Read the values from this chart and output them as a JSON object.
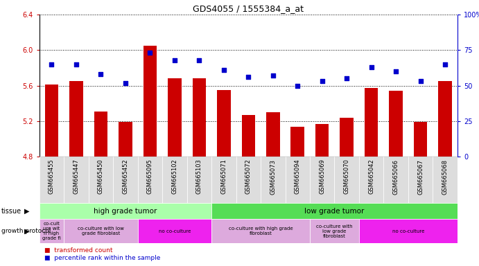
{
  "title": "GDS4055 / 1555384_a_at",
  "samples": [
    "GSM665455",
    "GSM665447",
    "GSM665450",
    "GSM665452",
    "GSM665095",
    "GSM665102",
    "GSM665103",
    "GSM665071",
    "GSM665072",
    "GSM665073",
    "GSM665094",
    "GSM665069",
    "GSM665070",
    "GSM665042",
    "GSM665066",
    "GSM665067",
    "GSM665068"
  ],
  "bar_values": [
    5.61,
    5.65,
    5.31,
    5.19,
    6.05,
    5.68,
    5.68,
    5.55,
    5.27,
    5.3,
    5.14,
    5.17,
    5.24,
    5.57,
    5.54,
    5.19,
    5.65
  ],
  "dot_values": [
    65,
    65,
    58,
    52,
    73,
    68,
    68,
    61,
    56,
    57,
    50,
    53,
    55,
    63,
    60,
    53,
    65
  ],
  "ylim": [
    4.8,
    6.4
  ],
  "yticks_left": [
    4.8,
    5.2,
    5.6,
    6.0,
    6.4
  ],
  "yticks_right": [
    0,
    25,
    50,
    75,
    100
  ],
  "ytick_labels_right": [
    "0",
    "25",
    "50",
    "75",
    "100%"
  ],
  "bar_color": "#cc0000",
  "dot_color": "#0000cc",
  "tissue_row": [
    {
      "label": "high grade tumor",
      "start": 0,
      "end": 7,
      "color": "#aaffaa"
    },
    {
      "label": "low grade tumor",
      "start": 7,
      "end": 17,
      "color": "#55dd55"
    }
  ],
  "growth_row": [
    {
      "label": "co-cult\nure wit\nh high\ngrade fi",
      "start": 0,
      "end": 1,
      "color": "#ddaadd"
    },
    {
      "label": "co-culture with low\ngrade fibroblast",
      "start": 1,
      "end": 4,
      "color": "#ddaadd"
    },
    {
      "label": "no co-culture",
      "start": 4,
      "end": 7,
      "color": "#ee22ee"
    },
    {
      "label": "co-culture with high grade\nfibroblast",
      "start": 7,
      "end": 11,
      "color": "#ddaadd"
    },
    {
      "label": "co-culture with\nlow grade\nfibroblast",
      "start": 11,
      "end": 13,
      "color": "#ddaadd"
    },
    {
      "label": "no co-culture",
      "start": 13,
      "end": 17,
      "color": "#ee22ee"
    }
  ],
  "legend_red_label": "transformed count",
  "legend_blue_label": "percentile rank within the sample",
  "tissue_label": "tissue",
  "growth_label": "growth protocol",
  "bar_width": 0.55,
  "background_color": "#ffffff",
  "xtick_bg": "#dddddd"
}
